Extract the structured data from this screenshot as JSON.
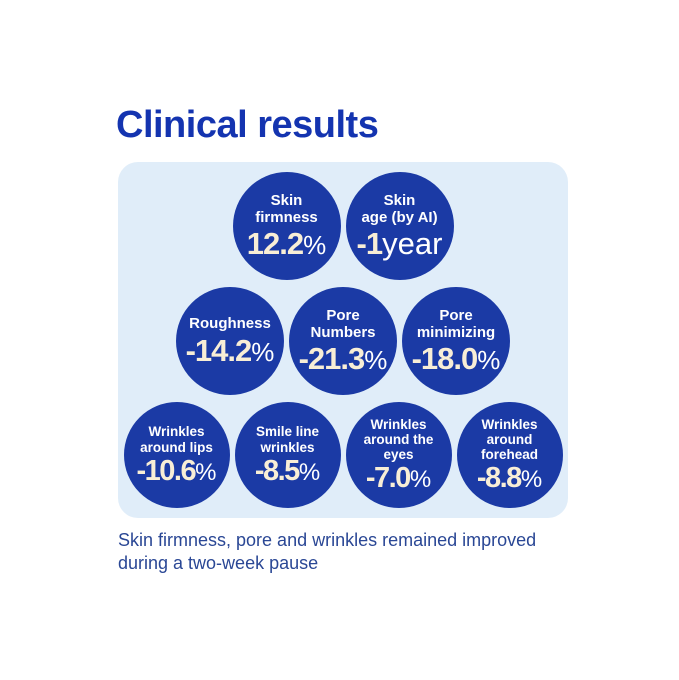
{
  "title": "Clinical results",
  "footer": "Skin firmness, pore and wrinkles remained improved\nduring a two-week pause",
  "circles": [
    {
      "label": "Skin\nfirmness",
      "value": "12.2",
      "suffix": "%"
    },
    {
      "label": "Skin\nage (by AI)",
      "value": "-1",
      "suffix": "year"
    },
    {
      "label": "Roughness",
      "value": "-14.2",
      "suffix": "%"
    },
    {
      "label": "Pore\nNumbers",
      "value": "-21.3",
      "suffix": "%"
    },
    {
      "label": "Pore\nminimizing",
      "value": "-18.0",
      "suffix": "%"
    },
    {
      "label": "Wrinkles\naround lips",
      "value": "-10.6",
      "suffix": "%"
    },
    {
      "label": "Smile line\nwrinkles",
      "value": "-8.5",
      "suffix": "%"
    },
    {
      "label": "Wrinkles\naround the\neyes",
      "value": "-7.0",
      "suffix": "%"
    },
    {
      "label": "Wrinkles\naround\nforehead",
      "value": "-8.8",
      "suffix": "%"
    }
  ],
  "colors": {
    "title_blue": "#1434b0",
    "circle_blue": "#1b3aa5",
    "panel_bg": "#e0edf9",
    "accent_cream": "#f8eed6",
    "footer_blue": "#2a4795"
  },
  "chart_data": {
    "type": "table",
    "title": "Clinical results",
    "categories": [
      "Skin firmness",
      "Skin age (by AI)",
      "Roughness",
      "Pore Numbers",
      "Pore minimizing",
      "Wrinkles around lips",
      "Smile line wrinkles",
      "Wrinkles around the eyes",
      "Wrinkles around forehead"
    ],
    "values": [
      12.2,
      -1,
      -14.2,
      -21.3,
      -18.0,
      -10.6,
      -8.5,
      -7.0,
      -8.8
    ],
    "units": [
      "%",
      "year",
      "%",
      "%",
      "%",
      "%",
      "%",
      "%",
      "%"
    ],
    "note": "Skin firmness, pore and wrinkles remained improved during a two-week pause"
  }
}
